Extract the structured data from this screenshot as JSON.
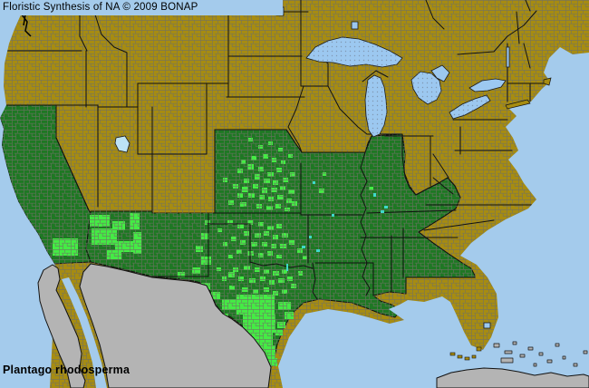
{
  "header": {
    "title": "Floristic Synthesis of NA © 2009 BONAP"
  },
  "footer": {
    "species_name": "Plantago rhodosperma"
  },
  "map": {
    "kind": "county-level plant distribution choropleth, conterminous United States with Canada and Mexico margins",
    "colors": {
      "state_absent_yellow": "#A78C10",
      "state_present_dark_green": "#1E7823",
      "county_present_bright_green": "#44EC44",
      "no_data_gray_land": "#B4B4B4",
      "ocean": "#A4CBEC",
      "great_lakes": "#9CC8F0",
      "inland_lake_cyan": "#3FD8CA",
      "salt_lake_pale": "#BCE2F4",
      "state_border": "#111111",
      "county_line": "#6F7065"
    },
    "color_meaning": {
      "bright_green": "species present in county",
      "dark_green": "species present in state",
      "dark_yellow": "species absent from state",
      "gray": "outside floristic coverage (Mexico, Cuba, Bahamas)"
    },
    "states_species_present": [
      "California",
      "Arizona",
      "New Mexico",
      "Texas",
      "Oklahoma",
      "Kansas",
      "Missouri",
      "Arkansas",
      "Louisiana",
      "Illinois",
      "Kentucky",
      "Tennessee",
      "Mississippi",
      "Alabama",
      "Georgia"
    ],
    "states_species_absent": [
      "Washington",
      "Oregon",
      "Idaho",
      "Montana",
      "Wyoming",
      "Nevada",
      "Utah",
      "Colorado",
      "North Dakota",
      "South Dakota",
      "Nebraska",
      "Minnesota",
      "Iowa",
      "Wisconsin",
      "Michigan",
      "Indiana",
      "Ohio",
      "Pennsylvania",
      "New York",
      "New Jersey",
      "Delaware",
      "Maryland",
      "Virginia",
      "West Virginia",
      "North Carolina",
      "South Carolina",
      "Florida",
      "Vermont",
      "New Hampshire",
      "Maine",
      "Massachusetts",
      "Connecticut",
      "Rhode Island"
    ],
    "county_dots": [
      [
        262,
        186,
        6,
        5
      ],
      [
        273,
        181,
        7,
        6
      ],
      [
        285,
        184,
        6,
        5
      ],
      [
        295,
        190,
        7,
        5
      ],
      [
        305,
        185,
        6,
        5
      ],
      [
        281,
        192,
        6,
        6
      ],
      [
        291,
        197,
        7,
        5
      ],
      [
        269,
        197,
        6,
        5
      ],
      [
        301,
        199,
        6,
        5
      ],
      [
        312,
        196,
        6,
        5
      ],
      [
        257,
        203,
        6,
        5
      ],
      [
        267,
        206,
        7,
        6
      ],
      [
        279,
        203,
        6,
        5
      ],
      [
        289,
        207,
        6,
        6
      ],
      [
        299,
        207,
        7,
        5
      ],
      [
        309,
        205,
        6,
        5
      ],
      [
        318,
        209,
        7,
        5
      ],
      [
        262,
        213,
        6,
        5
      ],
      [
        274,
        213,
        7,
        5
      ],
      [
        286,
        215,
        6,
        5
      ],
      [
        296,
        217,
        6,
        5
      ],
      [
        306,
        215,
        7,
        5
      ],
      [
        316,
        219,
        6,
        5
      ],
      [
        252,
        221,
        6,
        5
      ],
      [
        265,
        223,
        7,
        5
      ],
      [
        283,
        225,
        6,
        5
      ],
      [
        294,
        227,
        7,
        5
      ],
      [
        304,
        225,
        6,
        5
      ],
      [
        314,
        229,
        6,
        4
      ],
      [
        322,
        222,
        6,
        5
      ],
      [
        246,
        196,
        5,
        5
      ],
      [
        320,
        190,
        6,
        5
      ],
      [
        277,
        172,
        6,
        5
      ],
      [
        290,
        170,
        6,
        5
      ],
      [
        300,
        174,
        5,
        5
      ],
      [
        266,
        176,
        5,
        5
      ],
      [
        285,
        160,
        5,
        4
      ],
      [
        296,
        156,
        5,
        4
      ],
      [
        307,
        163,
        5,
        4
      ],
      [
        274,
        152,
        5,
        4
      ],
      [
        310,
        177,
        5,
        4
      ],
      [
        318,
        170,
        5,
        4
      ],
      [
        251,
        243,
        6,
        5
      ],
      [
        262,
        247,
        7,
        5
      ],
      [
        273,
        243,
        6,
        5
      ],
      [
        285,
        245,
        6,
        5
      ],
      [
        295,
        249,
        7,
        5
      ],
      [
        305,
        247,
        6,
        5
      ],
      [
        269,
        255,
        6,
        5
      ],
      [
        281,
        257,
        7,
        5
      ],
      [
        291,
        255,
        6,
        5
      ],
      [
        301,
        259,
        6,
        5
      ],
      [
        311,
        257,
        7,
        5
      ],
      [
        255,
        261,
        6,
        5
      ],
      [
        265,
        265,
        6,
        5
      ],
      [
        277,
        267,
        7,
        5
      ],
      [
        289,
        267,
        6,
        5
      ],
      [
        299,
        269,
        6,
        5
      ],
      [
        309,
        269,
        7,
        5
      ],
      [
        319,
        265,
        6,
        5
      ],
      [
        328,
        274,
        6,
        5
      ],
      [
        261,
        275,
        6,
        5
      ],
      [
        273,
        277,
        7,
        5
      ],
      [
        285,
        279,
        6,
        5
      ],
      [
        295,
        277,
        6,
        5
      ],
      [
        305,
        281,
        6,
        4
      ],
      [
        246,
        267,
        5,
        5
      ],
      [
        252,
        281,
        5,
        4
      ],
      [
        240,
        252,
        5,
        4
      ],
      [
        334,
        282,
        5,
        4
      ],
      [
        257,
        295,
        6,
        5
      ],
      [
        269,
        293,
        7,
        5
      ],
      [
        281,
        295,
        6,
        5
      ],
      [
        291,
        297,
        6,
        5
      ],
      [
        301,
        299,
        7,
        5
      ],
      [
        311,
        297,
        6,
        5
      ],
      [
        263,
        305,
        6,
        5
      ],
      [
        275,
        307,
        7,
        5
      ],
      [
        287,
        305,
        6,
        5
      ],
      [
        297,
        309,
        6,
        5
      ],
      [
        307,
        307,
        7,
        5
      ],
      [
        317,
        305,
        6,
        5
      ],
      [
        253,
        315,
        6,
        5
      ],
      [
        267,
        317,
        7,
        5
      ],
      [
        279,
        319,
        6,
        5
      ],
      [
        291,
        317,
        6,
        5
      ],
      [
        301,
        321,
        6,
        5
      ],
      [
        311,
        319,
        6,
        5
      ],
      [
        321,
        313,
        6,
        5
      ],
      [
        329,
        299,
        5,
        5
      ],
      [
        245,
        305,
        5,
        5
      ],
      [
        239,
        295,
        5,
        4
      ],
      [
        261,
        325,
        42,
        22
      ],
      [
        268,
        347,
        36,
        20
      ],
      [
        275,
        367,
        26,
        16
      ],
      [
        284,
        381,
        20,
        14
      ],
      [
        293,
        395,
        13,
        9
      ],
      [
        307,
        333,
        14,
        9
      ],
      [
        314,
        344,
        10,
        8
      ],
      [
        306,
        355,
        9,
        7
      ],
      [
        245,
        330,
        16,
        12
      ],
      [
        233,
        322,
        10,
        8
      ],
      [
        222,
        312,
        10,
        8
      ],
      [
        240,
        346,
        12,
        8
      ],
      [
        252,
        300,
        7,
        6
      ],
      [
        304,
        364,
        8,
        6
      ],
      [
        222,
        257,
        9,
        7
      ],
      [
        216,
        271,
        8,
        7
      ],
      [
        222,
        283,
        11,
        9
      ],
      [
        212,
        295,
        9,
        7
      ],
      [
        196,
        300,
        8,
        6
      ],
      [
        226,
        243,
        6,
        5
      ],
      [
        99,
        237,
        22,
        13
      ],
      [
        101,
        252,
        28,
        18
      ],
      [
        124,
        244,
        14,
        10
      ],
      [
        127,
        266,
        20,
        12
      ],
      [
        143,
        235,
        11,
        18
      ],
      [
        147,
        256,
        9,
        24
      ],
      [
        118,
        276,
        16,
        10
      ],
      [
        58,
        263,
        28,
        19
      ],
      [
        352,
        208,
        6,
        5
      ],
      [
        407,
        206,
        5,
        4
      ],
      [
        356,
        190,
        4,
        4
      ]
    ]
  }
}
